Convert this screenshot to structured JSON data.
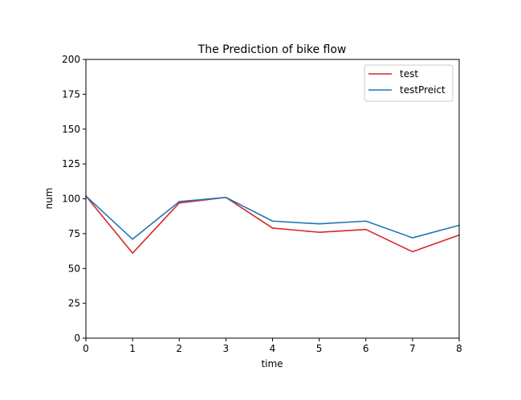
{
  "chart_data": {
    "type": "line",
    "title": "The Prediction of bike flow",
    "xlabel": "time",
    "ylabel": "num",
    "x": [
      0,
      1,
      2,
      3,
      4,
      5,
      6,
      7,
      8
    ],
    "xlim": [
      0,
      8
    ],
    "ylim": [
      0,
      200
    ],
    "xticks": [
      "0",
      "1",
      "2",
      "3",
      "4",
      "5",
      "6",
      "7",
      "8"
    ],
    "yticks": [
      "0",
      "25",
      "50",
      "75",
      "100",
      "125",
      "150",
      "175",
      "200"
    ],
    "grid": false,
    "legend_position": "top-right",
    "series": [
      {
        "name": "test",
        "color": "#d62728",
        "values": [
          102,
          61,
          97,
          101,
          79,
          76,
          78,
          62,
          74
        ]
      },
      {
        "name": "testPreict",
        "color": "#1f77b4",
        "values": [
          102,
          71,
          98,
          101,
          84,
          82,
          84,
          72,
          81
        ]
      }
    ]
  }
}
